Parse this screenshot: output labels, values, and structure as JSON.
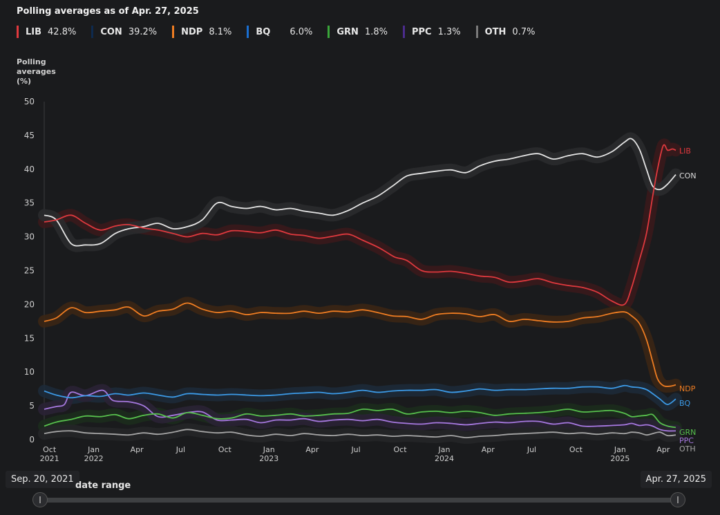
{
  "title": "Polling averages as of Apr. 27, 2025",
  "legend": [
    {
      "name": "LIB",
      "value": "42.8%",
      "color": "#e0393e"
    },
    {
      "name": "CON",
      "value": "39.2%",
      "color": "#0e2a4e"
    },
    {
      "name": "NDP",
      "value": "8.1%",
      "color": "#ef7d22"
    },
    {
      "name": "BQ",
      "value": "6.0%",
      "color": "#1a6fd1"
    },
    {
      "name": "GRN",
      "value": "1.8%",
      "color": "#3aa63a"
    },
    {
      "name": "PPC",
      "value": "1.3%",
      "color": "#4b2c8c"
    },
    {
      "name": "OTH",
      "value": "0.7%",
      "color": "#7a7a7a"
    }
  ],
  "range": {
    "start": "Sep. 20, 2021",
    "end": "Apr. 27, 2025",
    "label": "date range",
    "start_fraction": 0,
    "end_fraction": 1
  },
  "chart_data": {
    "type": "line",
    "ylabel": "Polling averages (%)",
    "ylim": [
      0,
      50
    ],
    "yticks": [
      "0",
      "5",
      "10",
      "15",
      "20",
      "25",
      "30",
      "35",
      "40",
      "45",
      "50"
    ],
    "xlim": [
      "2021-09-20",
      "2025-04-27"
    ],
    "xticks": [
      {
        "date": "2021-10-01",
        "label": "Oct",
        "year": "2021"
      },
      {
        "date": "2022-01-01",
        "label": "Jan",
        "year": "2022"
      },
      {
        "date": "2022-04-01",
        "label": "Apr",
        "year": ""
      },
      {
        "date": "2022-07-01",
        "label": "Jul",
        "year": ""
      },
      {
        "date": "2022-10-01",
        "label": "Oct",
        "year": ""
      },
      {
        "date": "2023-01-01",
        "label": "Jan",
        "year": "2023"
      },
      {
        "date": "2023-04-01",
        "label": "Apr",
        "year": ""
      },
      {
        "date": "2023-07-01",
        "label": "Jul",
        "year": ""
      },
      {
        "date": "2023-10-01",
        "label": "Oct",
        "year": ""
      },
      {
        "date": "2024-01-01",
        "label": "Jan",
        "year": "2024"
      },
      {
        "date": "2024-04-01",
        "label": "Apr",
        "year": ""
      },
      {
        "date": "2024-07-01",
        "label": "Jul",
        "year": ""
      },
      {
        "date": "2024-10-01",
        "label": "Oct",
        "year": ""
      },
      {
        "date": "2025-01-01",
        "label": "Jan",
        "year": "2025"
      },
      {
        "date": "2025-04-01",
        "label": "Apr",
        "year": ""
      }
    ],
    "series": [
      {
        "name": "LIB",
        "line_color": "#e0393e",
        "band_color": "#3a1a1c",
        "label_color": "#e0393e",
        "x": [
          "2021-09-20",
          "2021-10-15",
          "2021-11-15",
          "2021-12-15",
          "2022-01-15",
          "2022-02-15",
          "2022-03-15",
          "2022-04-15",
          "2022-05-15",
          "2022-06-15",
          "2022-07-15",
          "2022-08-15",
          "2022-09-15",
          "2022-10-15",
          "2022-11-15",
          "2022-12-15",
          "2023-01-15",
          "2023-02-15",
          "2023-03-15",
          "2023-04-15",
          "2023-05-15",
          "2023-06-15",
          "2023-07-15",
          "2023-08-15",
          "2023-09-01",
          "2023-09-20",
          "2023-10-15",
          "2023-11-15",
          "2023-12-15",
          "2024-01-15",
          "2024-02-15",
          "2024-03-15",
          "2024-04-15",
          "2024-05-15",
          "2024-06-15",
          "2024-07-15",
          "2024-08-15",
          "2024-09-15",
          "2024-10-15",
          "2024-11-15",
          "2024-12-15",
          "2025-01-10",
          "2025-01-25",
          "2025-02-10",
          "2025-02-25",
          "2025-03-10",
          "2025-03-20",
          "2025-04-01",
          "2025-04-10",
          "2025-04-20",
          "2025-04-27"
        ],
        "y": [
          32.2,
          32.5,
          33.2,
          32.0,
          31.0,
          31.6,
          31.8,
          31.3,
          31.0,
          30.5,
          30.0,
          30.5,
          30.3,
          30.9,
          30.8,
          30.6,
          31.0,
          30.4,
          30.2,
          29.8,
          30.1,
          30.4,
          29.5,
          28.5,
          27.8,
          27.0,
          26.5,
          25.0,
          24.8,
          24.9,
          24.6,
          24.2,
          24.0,
          23.3,
          23.5,
          23.8,
          23.2,
          22.8,
          22.5,
          21.8,
          20.5,
          20.0,
          22.5,
          26.5,
          30.5,
          36.0,
          40.0,
          43.5,
          42.8,
          43.0,
          42.8
        ]
      },
      {
        "name": "CON",
        "line_color": "#e6e6e6",
        "band_color": "#2a2b2e",
        "label_color": "#dcdcdc",
        "x": [
          "2021-09-20",
          "2021-10-15",
          "2021-11-15",
          "2021-12-15",
          "2022-01-15",
          "2022-02-15",
          "2022-03-15",
          "2022-04-15",
          "2022-05-15",
          "2022-06-15",
          "2022-07-15",
          "2022-08-15",
          "2022-09-15",
          "2022-10-15",
          "2022-11-15",
          "2022-12-15",
          "2023-01-15",
          "2023-02-15",
          "2023-03-15",
          "2023-04-15",
          "2023-05-15",
          "2023-06-15",
          "2023-07-15",
          "2023-08-15",
          "2023-09-15",
          "2023-10-15",
          "2023-11-15",
          "2023-12-15",
          "2024-01-15",
          "2024-02-15",
          "2024-03-15",
          "2024-04-15",
          "2024-05-15",
          "2024-06-15",
          "2024-07-15",
          "2024-08-15",
          "2024-09-15",
          "2024-10-15",
          "2024-11-15",
          "2024-12-15",
          "2025-01-10",
          "2025-01-25",
          "2025-02-10",
          "2025-02-25",
          "2025-03-10",
          "2025-03-25",
          "2025-04-10",
          "2025-04-27"
        ],
        "y": [
          33.2,
          32.5,
          29.0,
          28.8,
          29.0,
          30.5,
          31.2,
          31.5,
          32.0,
          31.2,
          31.5,
          32.5,
          35.0,
          34.5,
          34.2,
          34.5,
          34.0,
          34.2,
          33.8,
          33.5,
          33.2,
          33.9,
          35.0,
          36.0,
          37.5,
          39.0,
          39.4,
          39.7,
          39.9,
          39.5,
          40.5,
          41.2,
          41.5,
          42.0,
          42.3,
          41.5,
          42.0,
          42.3,
          41.8,
          42.6,
          44.0,
          44.5,
          43.0,
          40.0,
          37.5,
          37.0,
          37.8,
          39.2
        ]
      },
      {
        "name": "NDP",
        "line_color": "#ef7d22",
        "band_color": "#3b2615",
        "label_color": "#ef7d22",
        "x": [
          "2021-09-20",
          "2021-10-15",
          "2021-11-15",
          "2021-12-15",
          "2022-01-15",
          "2022-02-15",
          "2022-03-15",
          "2022-04-15",
          "2022-05-15",
          "2022-06-15",
          "2022-07-15",
          "2022-08-15",
          "2022-09-15",
          "2022-10-15",
          "2022-11-15",
          "2022-12-15",
          "2023-01-15",
          "2023-02-15",
          "2023-03-15",
          "2023-04-15",
          "2023-05-15",
          "2023-06-15",
          "2023-07-15",
          "2023-08-15",
          "2023-09-15",
          "2023-10-15",
          "2023-11-15",
          "2023-12-15",
          "2024-01-15",
          "2024-02-15",
          "2024-03-15",
          "2024-04-15",
          "2024-05-15",
          "2024-06-15",
          "2024-07-15",
          "2024-08-15",
          "2024-09-15",
          "2024-10-15",
          "2024-11-15",
          "2024-12-15",
          "2025-01-10",
          "2025-01-25",
          "2025-02-10",
          "2025-02-25",
          "2025-03-10",
          "2025-03-20",
          "2025-04-01",
          "2025-04-15",
          "2025-04-27"
        ],
        "y": [
          17.5,
          18.0,
          19.5,
          18.8,
          19.0,
          19.2,
          19.6,
          18.3,
          19.0,
          19.3,
          20.2,
          19.3,
          18.8,
          19.0,
          18.5,
          18.8,
          18.7,
          18.7,
          19.0,
          18.7,
          19.0,
          18.9,
          19.2,
          18.8,
          18.3,
          18.2,
          17.8,
          18.5,
          18.7,
          18.6,
          18.2,
          18.5,
          17.5,
          17.8,
          17.6,
          17.4,
          17.5,
          18.0,
          18.2,
          18.7,
          18.9,
          18.3,
          17.2,
          14.8,
          11.5,
          9.0,
          8.0,
          7.9,
          8.1
        ]
      },
      {
        "name": "BQ",
        "line_color": "#3c9be8",
        "band_color": "#1d2a38",
        "label_color": "#3c9be8",
        "x": [
          "2021-09-20",
          "2021-10-15",
          "2021-11-15",
          "2021-12-15",
          "2022-01-15",
          "2022-02-15",
          "2022-03-15",
          "2022-04-15",
          "2022-05-15",
          "2022-06-15",
          "2022-07-15",
          "2022-08-15",
          "2022-09-15",
          "2022-10-15",
          "2022-11-15",
          "2022-12-15",
          "2023-01-15",
          "2023-02-15",
          "2023-03-15",
          "2023-04-15",
          "2023-05-15",
          "2023-06-15",
          "2023-07-15",
          "2023-08-15",
          "2023-09-15",
          "2023-10-15",
          "2023-11-15",
          "2023-12-15",
          "2024-01-15",
          "2024-02-15",
          "2024-03-15",
          "2024-04-15",
          "2024-05-15",
          "2024-06-15",
          "2024-07-15",
          "2024-08-15",
          "2024-09-15",
          "2024-10-15",
          "2024-11-15",
          "2024-12-15",
          "2025-01-10",
          "2025-01-25",
          "2025-02-10",
          "2025-02-25",
          "2025-03-10",
          "2025-03-25",
          "2025-04-10",
          "2025-04-27"
        ],
        "y": [
          7.2,
          6.6,
          6.2,
          6.5,
          6.4,
          6.8,
          6.6,
          6.9,
          6.6,
          6.3,
          6.8,
          6.7,
          6.6,
          6.7,
          6.6,
          6.5,
          6.6,
          6.8,
          6.9,
          7.0,
          6.8,
          7.0,
          7.3,
          7.0,
          7.2,
          7.3,
          7.3,
          7.4,
          7.0,
          7.2,
          7.5,
          7.3,
          7.4,
          7.4,
          7.5,
          7.6,
          7.6,
          7.8,
          7.8,
          7.6,
          8.0,
          7.8,
          7.7,
          7.4,
          6.8,
          6.0,
          5.2,
          6.0
        ]
      },
      {
        "name": "GRN",
        "line_color": "#57c04d",
        "band_color": "#1c2c1d",
        "label_color": "#57c04d",
        "x": [
          "2021-09-20",
          "2021-10-15",
          "2021-11-15",
          "2021-12-15",
          "2022-01-15",
          "2022-02-15",
          "2022-03-15",
          "2022-04-15",
          "2022-05-15",
          "2022-06-15",
          "2022-07-15",
          "2022-08-15",
          "2022-09-15",
          "2022-10-15",
          "2022-11-15",
          "2022-12-15",
          "2023-01-15",
          "2023-02-15",
          "2023-03-15",
          "2023-04-15",
          "2023-05-15",
          "2023-06-15",
          "2023-07-15",
          "2023-08-15",
          "2023-09-15",
          "2023-10-15",
          "2023-11-15",
          "2023-12-15",
          "2024-01-15",
          "2024-02-15",
          "2024-03-15",
          "2024-04-15",
          "2024-05-15",
          "2024-06-15",
          "2024-07-15",
          "2024-08-15",
          "2024-09-15",
          "2024-10-15",
          "2024-11-15",
          "2024-12-15",
          "2025-01-10",
          "2025-01-25",
          "2025-02-10",
          "2025-02-25",
          "2025-03-10",
          "2025-03-25",
          "2025-04-10",
          "2025-04-27"
        ],
        "y": [
          2.0,
          2.6,
          3.0,
          3.5,
          3.4,
          3.7,
          3.1,
          3.6,
          3.8,
          3.2,
          4.0,
          3.6,
          3.1,
          3.2,
          3.8,
          3.5,
          3.6,
          3.8,
          3.5,
          3.6,
          3.8,
          3.9,
          4.5,
          4.3,
          4.5,
          3.8,
          4.1,
          4.2,
          4.0,
          4.2,
          4.0,
          3.6,
          3.8,
          3.9,
          4.0,
          4.2,
          4.5,
          4.1,
          4.2,
          4.3,
          3.9,
          3.4,
          3.5,
          3.6,
          3.7,
          2.5,
          2.0,
          1.8
        ]
      },
      {
        "name": "PPC",
        "line_color": "#a779e0",
        "band_color": "#2a2235",
        "label_color": "#a779e0",
        "x": [
          "2021-09-20",
          "2021-10-15",
          "2021-11-01",
          "2021-11-15",
          "2021-12-15",
          "2022-01-20",
          "2022-02-10",
          "2022-03-15",
          "2022-04-15",
          "2022-05-15",
          "2022-06-15",
          "2022-07-15",
          "2022-08-15",
          "2022-09-15",
          "2022-10-15",
          "2022-11-15",
          "2022-12-15",
          "2023-01-15",
          "2023-02-15",
          "2023-03-15",
          "2023-04-15",
          "2023-05-15",
          "2023-06-15",
          "2023-07-15",
          "2023-08-15",
          "2023-09-15",
          "2023-10-15",
          "2023-11-15",
          "2023-12-15",
          "2024-01-15",
          "2024-02-15",
          "2024-03-15",
          "2024-04-15",
          "2024-05-15",
          "2024-06-15",
          "2024-07-15",
          "2024-08-15",
          "2024-09-15",
          "2024-10-15",
          "2024-11-15",
          "2024-12-15",
          "2025-01-10",
          "2025-01-25",
          "2025-02-10",
          "2025-02-25",
          "2025-03-10",
          "2025-03-25",
          "2025-04-10",
          "2025-04-27"
        ],
        "y": [
          4.5,
          4.9,
          5.2,
          7.0,
          6.5,
          7.3,
          5.8,
          5.6,
          5.0,
          3.4,
          3.6,
          4.0,
          4.1,
          2.9,
          2.9,
          3.0,
          2.5,
          2.9,
          2.9,
          3.1,
          2.7,
          2.9,
          3.0,
          2.8,
          3.0,
          2.6,
          2.4,
          2.3,
          2.5,
          2.4,
          2.2,
          2.4,
          2.6,
          2.5,
          2.7,
          2.7,
          2.3,
          2.5,
          2.0,
          2.0,
          2.1,
          2.2,
          2.4,
          2.1,
          2.2,
          2.0,
          1.5,
          1.3,
          1.3
        ]
      },
      {
        "name": "OTH",
        "line_color": "#a6a6a6",
        "band_color": "#252628",
        "label_color": "#a6a6a6",
        "x": [
          "2021-09-20",
          "2021-10-15",
          "2021-11-15",
          "2021-12-15",
          "2022-01-15",
          "2022-02-15",
          "2022-03-15",
          "2022-04-15",
          "2022-05-15",
          "2022-06-15",
          "2022-07-15",
          "2022-08-15",
          "2022-09-15",
          "2022-10-15",
          "2022-11-15",
          "2022-12-15",
          "2023-01-15",
          "2023-02-15",
          "2023-03-15",
          "2023-04-15",
          "2023-05-15",
          "2023-06-15",
          "2023-07-15",
          "2023-08-15",
          "2023-09-15",
          "2023-10-15",
          "2023-11-15",
          "2023-12-15",
          "2024-01-15",
          "2024-02-15",
          "2024-03-15",
          "2024-04-15",
          "2024-05-15",
          "2024-06-15",
          "2024-07-15",
          "2024-08-15",
          "2024-09-15",
          "2024-10-15",
          "2024-11-15",
          "2024-12-15",
          "2025-01-10",
          "2025-01-25",
          "2025-02-10",
          "2025-02-25",
          "2025-03-10",
          "2025-03-25",
          "2025-04-10",
          "2025-04-27"
        ],
        "y": [
          0.9,
          1.2,
          1.3,
          1.0,
          0.9,
          0.8,
          0.7,
          1.0,
          0.8,
          1.1,
          1.5,
          1.2,
          1.0,
          1.1,
          0.7,
          0.5,
          0.8,
          0.6,
          0.9,
          0.7,
          0.6,
          0.8,
          0.6,
          0.7,
          0.5,
          0.6,
          0.5,
          0.4,
          0.6,
          0.3,
          0.5,
          0.6,
          0.8,
          0.9,
          1.0,
          1.1,
          0.9,
          1.0,
          0.8,
          1.0,
          0.9,
          1.1,
          1.0,
          0.7,
          0.9,
          1.1,
          0.6,
          0.7
        ]
      }
    ]
  }
}
